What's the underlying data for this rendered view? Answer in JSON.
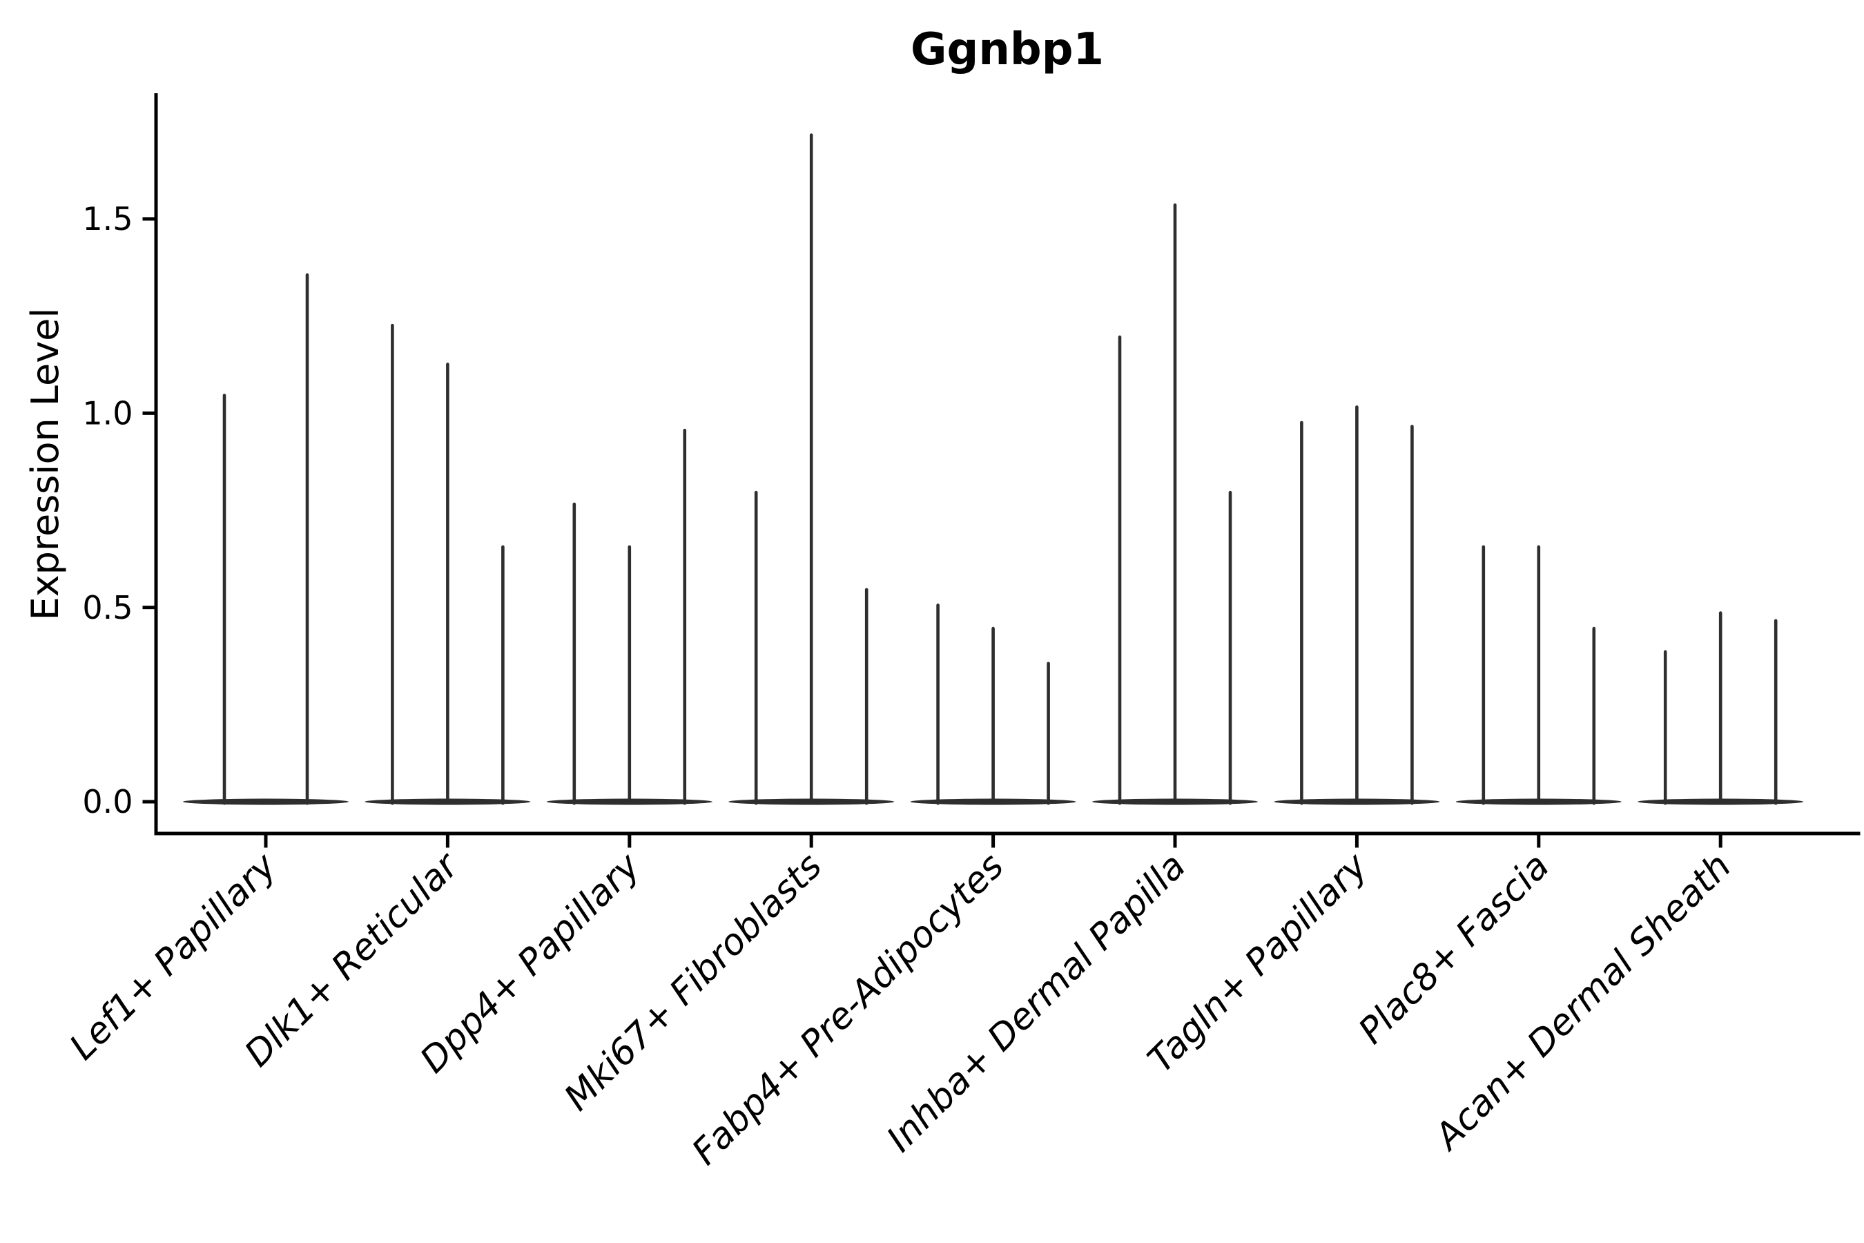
{
  "figure": {
    "title": "Ggnbp1",
    "ylabel": "Expression Level"
  },
  "chart_data": {
    "type": "violin",
    "title": "Ggnbp1",
    "xlabel": "",
    "ylabel": "Expression Level",
    "ylim": [
      -0.08,
      1.82
    ],
    "yticks": [
      0.0,
      0.5,
      1.0,
      1.5
    ],
    "ytick_labels": [
      "0.0",
      "0.5",
      "1.0",
      "1.5"
    ],
    "xtick_rotation": 45,
    "grid": false,
    "legend": null,
    "note": "Single-gene violin plot. Each category holds 2-3 ultra-thin violins: almost all density lies at expression 0 (flat tapered base) with a hair-thin spike rising to each violin's maximum expression value.",
    "style": {
      "violin_color": "#2e2e2e",
      "axis_color": "#000000",
      "background": "#ffffff"
    },
    "categories": [
      {
        "label": "Lef1+ Papillary",
        "violin_peaks": [
          1.05,
          1.36
        ]
      },
      {
        "label": "Dlk1+ Reticular",
        "violin_peaks": [
          1.23,
          1.13,
          0.66
        ]
      },
      {
        "label": "Dpp4+ Papillary",
        "violin_peaks": [
          0.77,
          0.66,
          0.96
        ]
      },
      {
        "label": "Mki67+ Fibroblasts",
        "violin_peaks": [
          0.8,
          1.72,
          0.55
        ]
      },
      {
        "label": "Fabp4+ Pre-Adipocytes",
        "violin_peaks": [
          0.51,
          0.45,
          0.36
        ]
      },
      {
        "label": "Inhba+ Dermal Papilla",
        "violin_peaks": [
          1.2,
          1.54,
          0.8
        ]
      },
      {
        "label": "Tagln+ Papillary",
        "violin_peaks": [
          0.98,
          1.02,
          0.97
        ]
      },
      {
        "label": "Plac8+ Fascia",
        "violin_peaks": [
          0.66,
          0.66,
          0.45
        ]
      },
      {
        "label": "Acan+ Dermal Sheath",
        "violin_peaks": [
          0.39,
          0.49,
          0.47
        ]
      }
    ]
  }
}
